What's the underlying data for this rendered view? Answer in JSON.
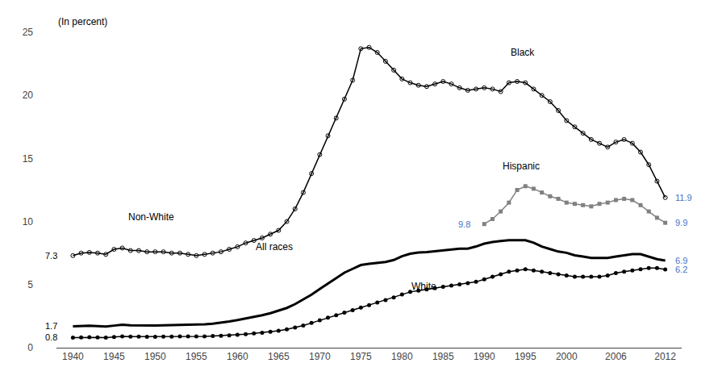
{
  "chart_data": {
    "type": "line",
    "y_label": "(In percent)",
    "xlim": [
      1938,
      2014
    ],
    "xticks": [
      1940,
      1945,
      1950,
      1955,
      1960,
      1965,
      1970,
      1975,
      1980,
      1985,
      1990,
      1995,
      2000,
      2006,
      2012
    ],
    "ylim": [
      0,
      25
    ],
    "yticks": [
      0,
      5,
      10,
      15,
      20,
      25
    ],
    "grid": false,
    "series": [
      {
        "name": "Black",
        "color": "#000000",
        "marker": "circle-open",
        "line_style": "solid",
        "x": [
          1940,
          1941,
          1942,
          1943,
          1944,
          1945,
          1946,
          1947,
          1948,
          1949,
          1950,
          1951,
          1952,
          1953,
          1954,
          1955,
          1956,
          1957,
          1958,
          1959,
          1960,
          1961,
          1962,
          1963,
          1964,
          1965,
          1966,
          1967,
          1968,
          1969,
          1970,
          1971,
          1972,
          1973,
          1974,
          1975,
          1976,
          1977,
          1978,
          1979,
          1980,
          1981,
          1982,
          1983,
          1984,
          1985,
          1986,
          1987,
          1988,
          1989,
          1990,
          1991,
          1992,
          1993,
          1994,
          1995,
          1996,
          1997,
          1998,
          1999,
          2000,
          2001,
          2002,
          2003,
          2004,
          2005,
          2006,
          2007,
          2008,
          2009,
          2010,
          2011,
          2012
        ],
        "values": [
          7.3,
          7.5,
          7.55,
          7.5,
          7.4,
          7.8,
          7.9,
          7.7,
          7.7,
          7.6,
          7.6,
          7.6,
          7.5,
          7.5,
          7.4,
          7.3,
          7.4,
          7.5,
          7.6,
          7.8,
          8.0,
          8.3,
          8.5,
          8.7,
          9.0,
          9.3,
          10.0,
          11.0,
          12.3,
          13.8,
          15.3,
          16.8,
          18.2,
          19.7,
          21.2,
          23.7,
          23.8,
          23.4,
          22.7,
          22.0,
          21.3,
          21.0,
          20.8,
          20.7,
          20.9,
          21.1,
          20.9,
          20.6,
          20.4,
          20.5,
          20.6,
          20.5,
          20.3,
          21.0,
          21.1,
          21.0,
          20.5,
          20.0,
          19.5,
          18.8,
          18.0,
          17.5,
          17.0,
          16.5,
          16.2,
          15.9,
          16.3,
          16.5,
          16.2,
          15.5,
          14.5,
          13.2,
          11.9
        ]
      },
      {
        "name": "All races",
        "color": "#000000",
        "marker": "none",
        "line_style": "solid",
        "x": [
          1940,
          1941,
          1942,
          1943,
          1944,
          1945,
          1946,
          1947,
          1948,
          1949,
          1950,
          1951,
          1952,
          1953,
          1954,
          1955,
          1956,
          1957,
          1958,
          1959,
          1960,
          1961,
          1962,
          1963,
          1964,
          1965,
          1966,
          1967,
          1968,
          1969,
          1970,
          1971,
          1972,
          1973,
          1974,
          1975,
          1976,
          1977,
          1978,
          1979,
          1980,
          1981,
          1982,
          1983,
          1984,
          1985,
          1986,
          1987,
          1988,
          1989,
          1990,
          1991,
          1992,
          1993,
          1994,
          1995,
          1996,
          1997,
          1998,
          1999,
          2000,
          2001,
          2002,
          2003,
          2004,
          2005,
          2006,
          2007,
          2008,
          2009,
          2010,
          2011,
          2012
        ],
        "values": [
          1.7,
          1.72,
          1.74,
          1.71,
          1.68,
          1.75,
          1.82,
          1.78,
          1.76,
          1.75,
          1.76,
          1.78,
          1.79,
          1.81,
          1.84,
          1.82,
          1.85,
          1.9,
          1.98,
          2.08,
          2.19,
          2.31,
          2.43,
          2.57,
          2.73,
          2.93,
          3.15,
          3.45,
          3.8,
          4.2,
          4.65,
          5.1,
          5.55,
          5.95,
          6.25,
          6.55,
          6.65,
          6.72,
          6.8,
          6.95,
          7.25,
          7.45,
          7.55,
          7.58,
          7.65,
          7.72,
          7.82,
          7.85,
          7.85,
          8.02,
          8.25,
          8.38,
          8.45,
          8.52,
          8.52,
          8.52,
          8.32,
          8.02,
          7.82,
          7.62,
          7.52,
          7.32,
          7.22,
          7.12,
          7.12,
          7.12,
          7.22,
          7.32,
          7.42,
          7.42,
          7.22,
          7.02,
          6.9
        ]
      },
      {
        "name": "White",
        "color": "#000000",
        "marker": "circle",
        "line_style": "solid",
        "x": [
          1940,
          1941,
          1942,
          1943,
          1944,
          1945,
          1946,
          1947,
          1948,
          1949,
          1950,
          1951,
          1952,
          1953,
          1954,
          1955,
          1956,
          1957,
          1958,
          1959,
          1960,
          1961,
          1962,
          1963,
          1964,
          1965,
          1966,
          1967,
          1968,
          1969,
          1970,
          1971,
          1972,
          1973,
          1974,
          1975,
          1976,
          1977,
          1978,
          1979,
          1980,
          1981,
          1982,
          1983,
          1984,
          1985,
          1986,
          1987,
          1988,
          1989,
          1990,
          1991,
          1992,
          1993,
          1994,
          1995,
          1996,
          1997,
          1998,
          1999,
          2000,
          2001,
          2002,
          2003,
          2004,
          2005,
          2006,
          2007,
          2008,
          2009,
          2010,
          2011,
          2012
        ],
        "values": [
          0.8,
          0.82,
          0.83,
          0.82,
          0.8,
          0.85,
          0.9,
          0.88,
          0.88,
          0.87,
          0.87,
          0.88,
          0.88,
          0.89,
          0.9,
          0.89,
          0.9,
          0.92,
          0.95,
          0.98,
          1.02,
          1.07,
          1.13,
          1.19,
          1.26,
          1.35,
          1.46,
          1.6,
          1.76,
          1.96,
          2.17,
          2.38,
          2.58,
          2.78,
          2.98,
          3.18,
          3.38,
          3.58,
          3.78,
          3.98,
          4.22,
          4.42,
          4.52,
          4.62,
          4.72,
          4.82,
          4.92,
          5.02,
          5.12,
          5.22,
          5.42,
          5.62,
          5.82,
          6.02,
          6.12,
          6.22,
          6.12,
          6.02,
          5.92,
          5.82,
          5.72,
          5.62,
          5.62,
          5.62,
          5.62,
          5.72,
          5.92,
          6.02,
          6.12,
          6.22,
          6.32,
          6.32,
          6.2
        ]
      },
      {
        "name": "Hispanic",
        "color": "#808080",
        "marker": "square",
        "line_style": "solid",
        "x": [
          1990,
          1991,
          1992,
          1993,
          1994,
          1995,
          1996,
          1997,
          1998,
          1999,
          2000,
          2001,
          2002,
          2003,
          2004,
          2005,
          2006,
          2007,
          2008,
          2009,
          2010,
          2011,
          2012
        ],
        "values": [
          9.8,
          10.2,
          10.8,
          11.5,
          12.5,
          12.8,
          12.6,
          12.3,
          12.0,
          11.8,
          11.5,
          11.4,
          11.3,
          11.2,
          11.4,
          11.5,
          11.7,
          11.8,
          11.7,
          11.3,
          10.8,
          10.3,
          9.9
        ]
      }
    ],
    "annotations": [
      {
        "text": "Black",
        "x": 1993,
        "y": 22.8,
        "color": "#000000"
      },
      {
        "text": "Non-White",
        "x": 1946.5,
        "y": 9.8,
        "color": "#000000"
      },
      {
        "text": "All races",
        "x": 1962,
        "y": 7.4,
        "color": "#000000"
      },
      {
        "text": "White",
        "x": 1981,
        "y": 4.3,
        "color": "#000000"
      },
      {
        "text": "Hispanic",
        "x": 1992,
        "y": 13.8,
        "color": "#000000"
      }
    ],
    "start_labels": [
      {
        "text": "7.3",
        "x": 1938.3,
        "y": 7.3,
        "color": "#000000"
      },
      {
        "text": "1.7",
        "x": 1938.3,
        "y": 1.7,
        "color": "#000000"
      },
      {
        "text": "0.8",
        "x": 1938.3,
        "y": 0.8,
        "color": "#000000"
      },
      {
        "text": "9.8",
        "x": 1988.5,
        "y": 9.8,
        "color": "#4472c4"
      }
    ],
    "end_labels": [
      {
        "text": "11.9",
        "x": 2013.0,
        "y": 11.9,
        "color": "#4472c4"
      },
      {
        "text": "9.9",
        "x": 2013.0,
        "y": 9.9,
        "color": "#4472c4"
      },
      {
        "text": "6.9",
        "x": 2013.0,
        "y": 6.9,
        "color": "#4472c4"
      },
      {
        "text": "6.2",
        "x": 2013.0,
        "y": 6.2,
        "color": "#4472c4"
      }
    ]
  }
}
